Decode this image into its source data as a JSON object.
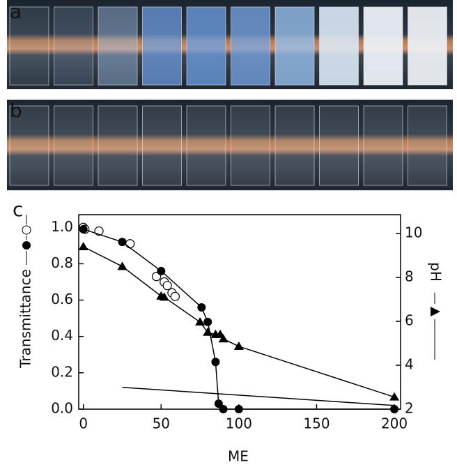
{
  "chart_data": {
    "type": "line",
    "panel_labels": [
      "a",
      "b",
      "c"
    ],
    "x_label": "ME",
    "y_label": "Transmittance",
    "y2_label": "pH",
    "xlim": [
      -3,
      204
    ],
    "xticks": [
      0,
      50,
      100,
      150,
      200
    ],
    "ylim": [
      0,
      1.07
    ],
    "yticks": [
      {
        "value": 0,
        "label": "0.0"
      },
      {
        "value": 0.2,
        "label": "0.2"
      },
      {
        "value": 0.4,
        "label": "0.4"
      },
      {
        "value": 0.6,
        "label": "0.6"
      },
      {
        "value": 0.8,
        "label": "0.8"
      },
      {
        "value": 1.0,
        "label": "1.0"
      }
    ],
    "y2lim": [
      2,
      10.86
    ],
    "y2ticks": [
      2,
      4,
      6,
      8,
      10
    ],
    "series": [
      {
        "marker": "open-circle",
        "color": "#000000",
        "line": false,
        "x": [
          0,
          1,
          10,
          30,
          47,
          52,
          54,
          57,
          59
        ],
        "values": [
          1.0,
          0.99,
          0.98,
          0.91,
          0.73,
          0.7,
          0.68,
          0.64,
          0.62
        ]
      },
      {
        "marker": "filled-circle",
        "color": "#000000",
        "line": true,
        "x": [
          0,
          25,
          50,
          76,
          80,
          85,
          87,
          90,
          100,
          200
        ],
        "values": [
          0.99,
          0.92,
          0.76,
          0.56,
          0.48,
          0.26,
          0.03,
          0.0,
          0.0,
          0.0
        ]
      },
      {
        "marker": "triangle",
        "color": "#000000",
        "line": true,
        "axis": "y2",
        "x": [
          0,
          25,
          50,
          52,
          75,
          80,
          85,
          88,
          90,
          100,
          200
        ],
        "values": [
          9.4,
          8.5,
          7.15,
          7.1,
          5.97,
          5.5,
          5.4,
          5.4,
          5.2,
          4.86,
          2.55
        ]
      },
      {
        "marker": "none",
        "color": "#000000",
        "line": true,
        "x": [
          25,
          200
        ],
        "values": [
          0.12,
          0.02
        ]
      }
    ]
  }
}
